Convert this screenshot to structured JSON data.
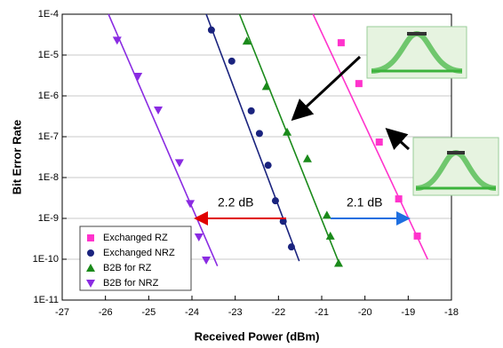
{
  "chart_data": {
    "type": "scatter",
    "x_label": "Received Power (dBm)",
    "y_label": "Bit Error Rate",
    "log_y": true,
    "grid": true,
    "legend": "lower-left",
    "xlim": [
      -27,
      -18
    ],
    "xticks": [
      -27,
      -26,
      -25,
      -24,
      -23,
      -22,
      -21,
      -20,
      -19,
      -18
    ],
    "ylim": [
      1e-11,
      0.0001
    ],
    "yticks": [
      {
        "value": 1e-11,
        "label": "1E-11"
      },
      {
        "value": 1e-10,
        "label": "1E-10"
      },
      {
        "value": 1e-09,
        "label": "1E-9"
      },
      {
        "value": 1e-08,
        "label": "1E-8"
      },
      {
        "value": 1e-07,
        "label": "1E-7"
      },
      {
        "value": 1e-06,
        "label": "1E-6"
      },
      {
        "value": 1e-05,
        "label": "1E-5"
      },
      {
        "value": 0.0001,
        "label": "1E-4"
      }
    ],
    "annotations": [
      "2.2 dB",
      "2.1 dB"
    ],
    "series": [
      {
        "name": "Exchanged RZ",
        "color": "#ff33cc",
        "marker": "square",
        "x": [
          -20.55,
          -20.14,
          -19.67,
          -19.22,
          -18.79
        ],
        "values": [
          2e-05,
          2e-06,
          7.4e-08,
          3e-09,
          3.7e-10
        ],
        "fit_x": [
          -21.2,
          -18.55
        ],
        "fit_values": [
          0.0001,
          1e-10
        ]
      },
      {
        "name": "Exchanged NRZ",
        "color": "#1a237e",
        "marker": "circle",
        "x": [
          -23.55,
          -23.08,
          -22.63,
          -22.44,
          -22.24,
          -22.07,
          -21.89,
          -21.7
        ],
        "values": [
          4.1e-05,
          7.1e-06,
          4.3e-07,
          1.2e-07,
          2e-08,
          2.7e-09,
          8.5e-10,
          2e-10
        ],
        "fit_x": [
          -23.67,
          -21.52
        ],
        "fit_values": [
          0.0001,
          9e-11
        ]
      },
      {
        "name": "B2B for RZ",
        "color": "#1a8a1a",
        "marker": "triangle",
        "x": [
          -22.73,
          -22.28,
          -21.8,
          -21.33,
          -20.88,
          -20.8,
          -20.61
        ],
        "values": [
          2.2e-05,
          1.7e-06,
          1.3e-07,
          2.9e-08,
          1.2e-09,
          3.7e-10,
          8e-11
        ],
        "fit_x": [
          -22.9,
          -20.57
        ],
        "fit_values": [
          0.0001,
          6.8e-11
        ]
      },
      {
        "name": "B2B for NRZ",
        "color": "#8a2be2",
        "marker": "triangle-down",
        "x": [
          -25.73,
          -25.25,
          -24.78,
          -24.29,
          -24.04,
          -23.84,
          -23.67
        ],
        "values": [
          2.3e-05,
          3e-06,
          4.5e-07,
          2.3e-08,
          2.3e-09,
          3.5e-10,
          9.5e-11
        ],
        "fit_x": [
          -25.93,
          -23.41
        ],
        "fit_values": [
          0.0001,
          6.8e-11
        ]
      }
    ]
  }
}
